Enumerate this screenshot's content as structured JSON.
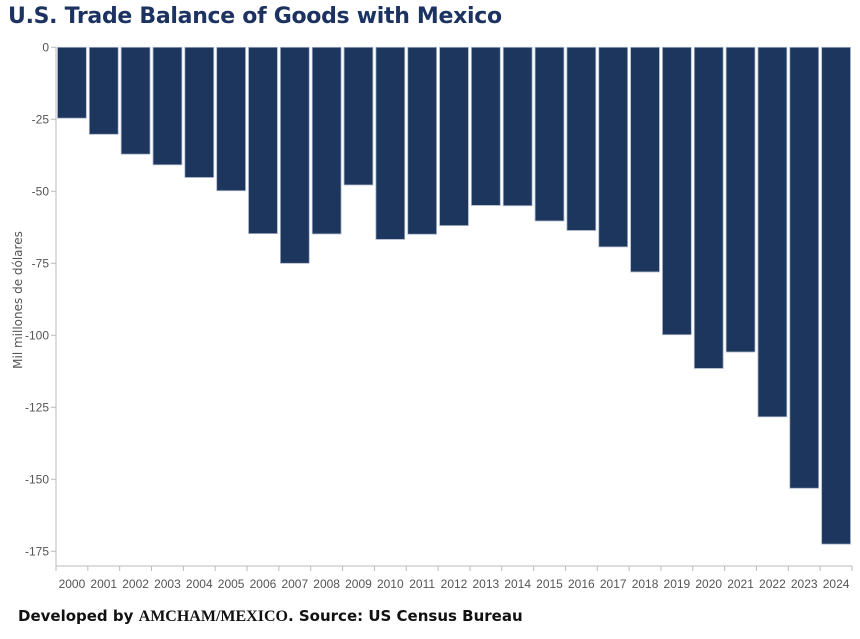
{
  "chart_data": {
    "type": "bar",
    "title": "U.S. Trade Balance of Goods with Mexico",
    "xlabel": "",
    "ylabel": "Mil millones de dólares",
    "ylim": [
      -178,
      0
    ],
    "yticks": [
      0,
      -25,
      -50,
      -75,
      -100,
      -125,
      -150,
      -175
    ],
    "ytick_labels": [
      "0",
      "-25",
      "-50",
      "-75",
      "-100",
      "-125",
      "-150",
      "-175"
    ],
    "grid": false,
    "legend": "none",
    "bar_color": "#1c365d",
    "categories": [
      "2000",
      "2001",
      "2002",
      "2003",
      "2004",
      "2005",
      "2006",
      "2007",
      "2008",
      "2009",
      "2010",
      "2011",
      "2012",
      "2013",
      "2014",
      "2015",
      "2016",
      "2017",
      "2018",
      "2019",
      "2020",
      "2021",
      "2022",
      "2023",
      "2024"
    ],
    "values": [
      -24.6,
      -30.2,
      -37.1,
      -40.8,
      -45.2,
      -49.8,
      -64.7,
      -75.0,
      -64.8,
      -47.8,
      -66.7,
      -64.9,
      -61.9,
      -54.9,
      -55.0,
      -60.3,
      -63.6,
      -69.3,
      -78.0,
      -99.8,
      -111.5,
      -105.8,
      -128.3,
      -153.1,
      -172.5
    ]
  },
  "footer": {
    "prefix": "Developed by ",
    "brand": "AMCHAM/MEXICO",
    "suffix": ". Source: US Census Bureau"
  }
}
